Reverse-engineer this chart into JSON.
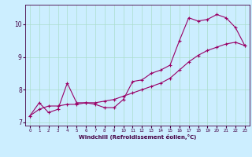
{
  "xlabel": "Windchill (Refroidissement éolien,°C)",
  "ylabel": "",
  "bg_color": "#cceeff",
  "line_color": "#990066",
  "grid_color": "#aaddcc",
  "x_data": [
    0,
    1,
    2,
    3,
    4,
    5,
    6,
    7,
    8,
    9,
    10,
    11,
    12,
    13,
    14,
    15,
    16,
    17,
    18,
    19,
    20,
    21,
    22,
    23
  ],
  "y_curve1": [
    7.2,
    7.6,
    7.3,
    7.4,
    8.2,
    7.6,
    7.6,
    7.55,
    7.45,
    7.45,
    7.7,
    8.25,
    8.3,
    8.5,
    8.6,
    8.75,
    9.5,
    10.2,
    10.1,
    10.15,
    10.3,
    10.2,
    9.9,
    9.35
  ],
  "y_curve2": [
    7.2,
    7.4,
    7.5,
    7.5,
    7.55,
    7.55,
    7.6,
    7.6,
    7.65,
    7.7,
    7.8,
    7.9,
    8.0,
    8.1,
    8.2,
    8.35,
    8.6,
    8.85,
    9.05,
    9.2,
    9.3,
    9.4,
    9.45,
    9.35
  ],
  "ylim": [
    6.9,
    10.6
  ],
  "xlim": [
    -0.5,
    23.5
  ],
  "yticks": [
    7,
    8,
    9,
    10
  ],
  "xticks": [
    0,
    1,
    2,
    3,
    4,
    5,
    6,
    7,
    8,
    9,
    10,
    11,
    12,
    13,
    14,
    15,
    16,
    17,
    18,
    19,
    20,
    21,
    22,
    23
  ]
}
